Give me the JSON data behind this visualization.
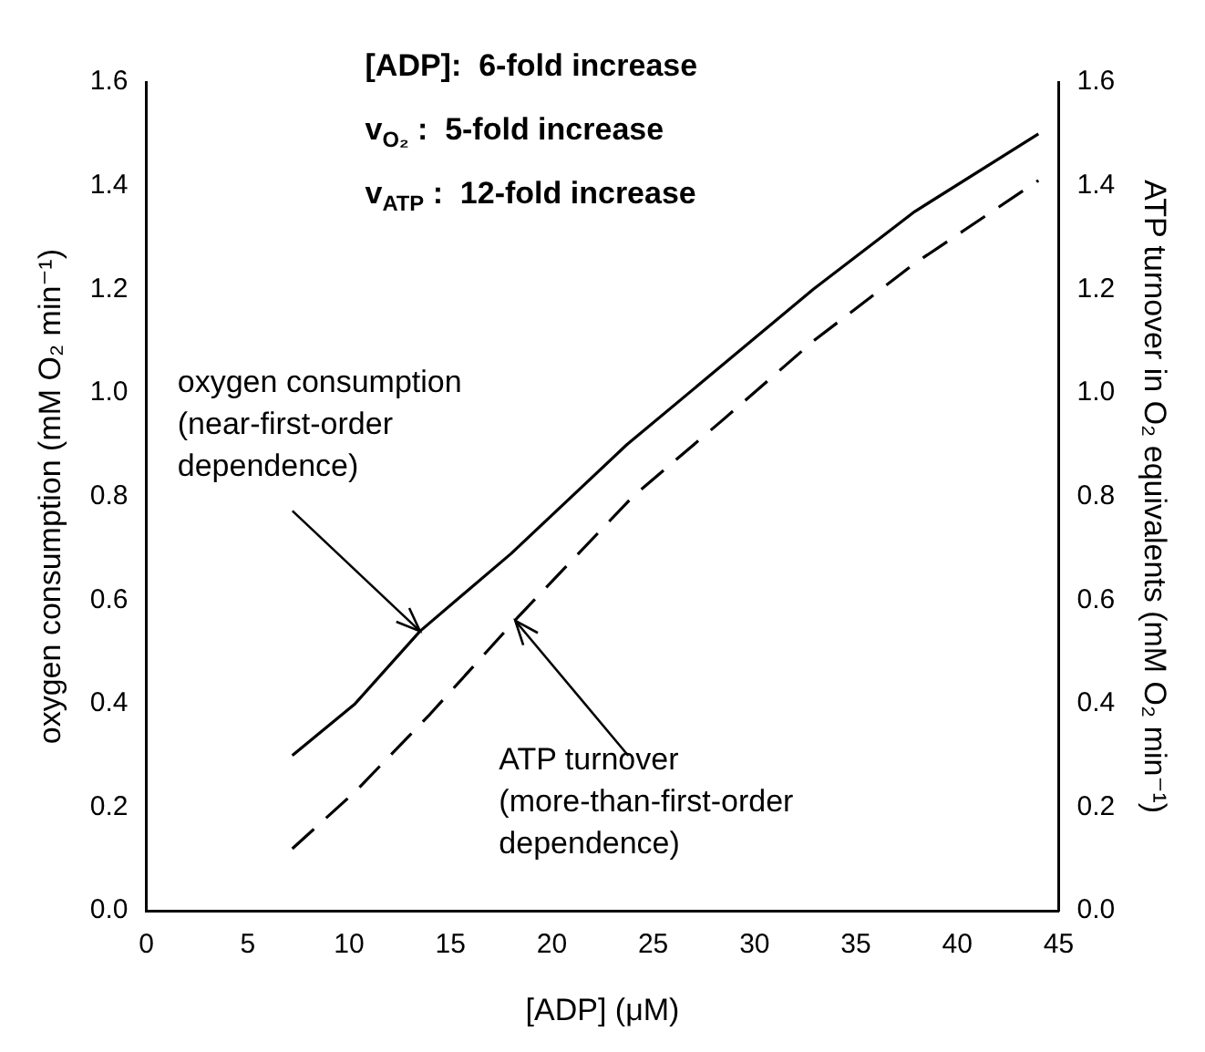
{
  "chart_data": {
    "type": "line",
    "xlabel": "[ADP] (μM)",
    "ylabel": "oxygen consumption (mM O₂ min⁻¹)",
    "y2label": "ATP turnover in O₂ equivalents (mM O₂ min⁻¹)",
    "series": [
      {
        "color": "#000000",
        "line_style": "solid",
        "x": [
          7.2,
          10.3,
          13.5,
          18.0,
          23.7,
          28.3,
          32.9,
          37.9,
          44.0
        ],
        "values": [
          0.3,
          0.4,
          0.54,
          0.69,
          0.9,
          1.05,
          1.2,
          1.35,
          1.5
        ]
      },
      {
        "color": "#000000",
        "line_style": "dashed",
        "axis": "y2",
        "x": [
          7.2,
          10.3,
          14.0,
          18.4,
          24.0,
          28.5,
          32.9,
          37.9,
          44.0
        ],
        "values": [
          0.12,
          0.23,
          0.38,
          0.57,
          0.8,
          0.95,
          1.1,
          1.25,
          1.41
        ]
      }
    ],
    "xlim": [
      0,
      45
    ],
    "xticks": [
      0,
      5,
      10,
      15,
      20,
      25,
      30,
      35,
      40,
      45
    ],
    "ylim": [
      0,
      1.6
    ],
    "yticks": [
      {
        "value": 0,
        "label": "0.0"
      },
      0.2,
      0.4,
      0.6,
      0.8,
      {
        "value": 1,
        "label": "1.0"
      },
      1.2,
      1.4,
      1.6
    ],
    "y2lim": [
      0,
      1.6
    ],
    "y2ticks": [
      {
        "value": 0,
        "label": "0.0"
      },
      0.2,
      0.4,
      0.6,
      0.8,
      {
        "value": 1,
        "label": "1.0"
      },
      1.2,
      1.4,
      1.6
    ],
    "grid": false,
    "legend": false,
    "marker": "none",
    "annotations": [
      "[ADP]:  6-fold increase",
      "v$_{O₂}$ :  5-fold increase",
      "v$_{ATP}$ :  12-fold increase",
      {
        "text": "oxygen consumption\n(near-first-order\ndependence)",
        "x": 13.5,
        "y": 0.54
      },
      {
        "text": "ATP turnover\n(more-than-first-order\ndependence)",
        "x": 18.2,
        "y": 0.56
      }
    ]
  }
}
